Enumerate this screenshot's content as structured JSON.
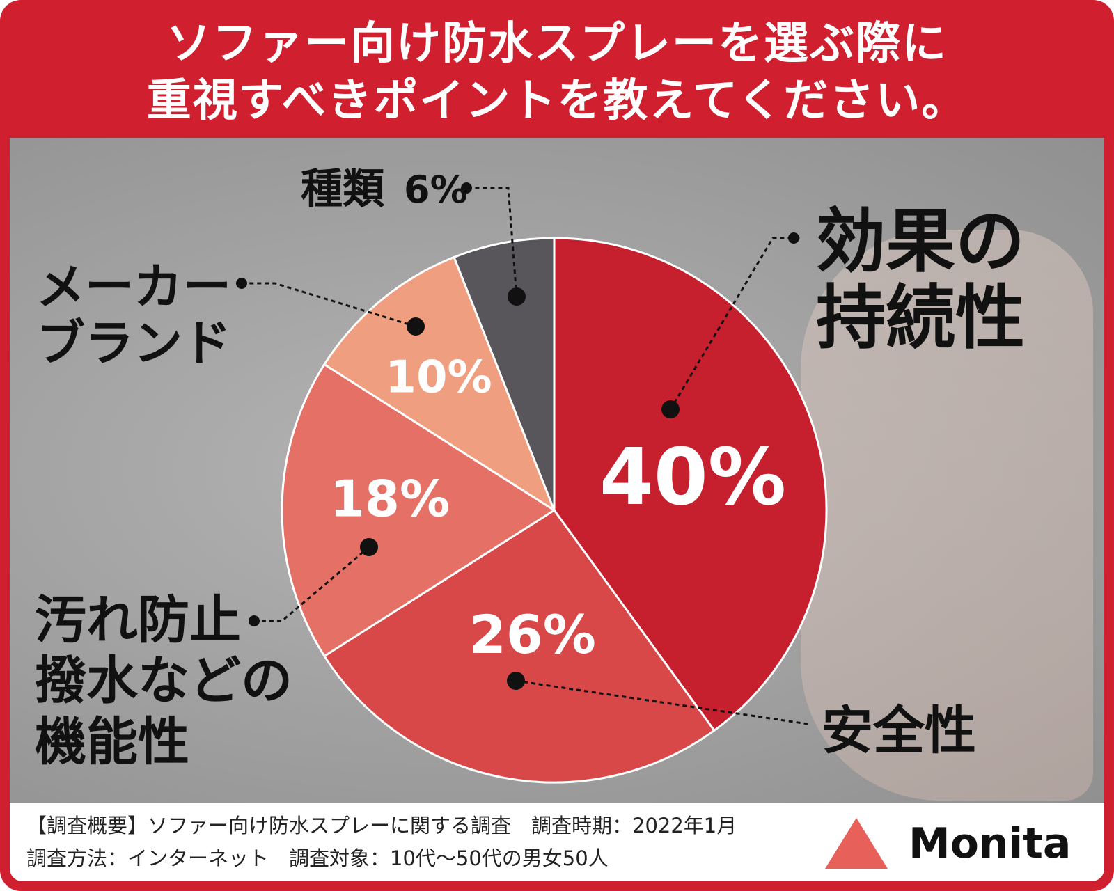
{
  "chart_data": {
    "type": "pie",
    "title": "ソファー向け防水スプレーを選ぶ際に\n重視すべきポイントを教えてください。",
    "categories": [
      "効果の\n持続性",
      "安全性",
      "汚れ防止\n撥水などの\n機能性",
      "メーカー\nブランド",
      "種類"
    ],
    "values": [
      40,
      26,
      18,
      10,
      6
    ],
    "value_labels": [
      "40%",
      "26%",
      "18%",
      "10%",
      "6%"
    ],
    "colors": [
      "#c61f2e",
      "#d84848",
      "#e57166",
      "#f09e80",
      "#58565b"
    ],
    "source": [
      "【調査概要】ソファー向け防水スプレーに関する調査　調査時期：2022年1月",
      "調査方法：インターネット　調査対象：10代〜50代の男女50人"
    ],
    "brand": "Monita"
  }
}
